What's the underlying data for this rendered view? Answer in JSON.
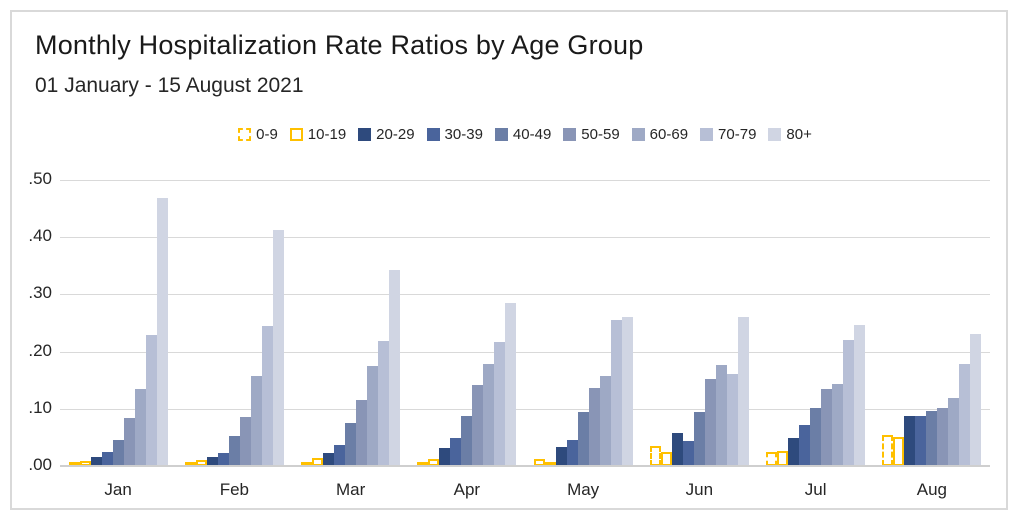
{
  "header": {
    "title": "Monthly Hospitalization Rate Ratios by Age Group",
    "subtitle": "01 January - 15 August 2021"
  },
  "colors": {
    "accent_orange": "#FFC000",
    "gridline": "#D9D9D9",
    "axis_line": "#CFCFCF",
    "frame_border": "#D9D9D9",
    "text": "#262626"
  },
  "chart_data": {
    "type": "bar",
    "title": "Monthly Hospitalization Rate Ratios by Age Group",
    "subtitle": "01 January - 15 August 2021",
    "grid": true,
    "legend_position": "top",
    "ylim": [
      0,
      0.5
    ],
    "ytick_step": 0.1,
    "ytick_labels": [
      ".00",
      ".10",
      ".20",
      ".30",
      ".40",
      ".50"
    ],
    "categories": [
      "Jan",
      "Feb",
      "Mar",
      "Apr",
      "May",
      "Jun",
      "Jul",
      "Aug"
    ],
    "series": [
      {
        "name": "0-9",
        "style": "dashed-outline",
        "color": "#FFC000",
        "values": [
          0.007,
          0.007,
          0.007,
          0.006,
          0.013,
          0.035,
          0.024,
          0.055
        ]
      },
      {
        "name": "10-19",
        "style": "solid-outline",
        "color": "#FFC000",
        "values": [
          0.008,
          0.011,
          0.014,
          0.012,
          0.007,
          0.024,
          0.027,
          0.05
        ]
      },
      {
        "name": "20-29",
        "style": "fill",
        "color": "#2E4A7D",
        "values": [
          0.015,
          0.015,
          0.023,
          0.031,
          0.034,
          0.058,
          0.049,
          0.087
        ]
      },
      {
        "name": "30-39",
        "style": "fill",
        "color": "#4A649C",
        "values": [
          0.024,
          0.023,
          0.036,
          0.049,
          0.046,
          0.044,
          0.071,
          0.087
        ]
      },
      {
        "name": "40-49",
        "style": "fill",
        "color": "#6B7EA6",
        "values": [
          0.046,
          0.053,
          0.075,
          0.087,
          0.094,
          0.094,
          0.101,
          0.097
        ]
      },
      {
        "name": "50-59",
        "style": "fill",
        "color": "#8995B6",
        "values": [
          0.084,
          0.086,
          0.116,
          0.142,
          0.137,
          0.152,
          0.134,
          0.101
        ]
      },
      {
        "name": "60-69",
        "style": "fill",
        "color": "#9EA9C5",
        "values": [
          0.134,
          0.157,
          0.175,
          0.178,
          0.157,
          0.177,
          0.144,
          0.119
        ]
      },
      {
        "name": "70-79",
        "style": "fill",
        "color": "#B7BFD6",
        "values": [
          0.229,
          0.244,
          0.219,
          0.216,
          0.256,
          0.161,
          0.221,
          0.179
        ]
      },
      {
        "name": "80+",
        "style": "fill",
        "color": "#D0D5E3",
        "values": [
          0.468,
          0.413,
          0.342,
          0.285,
          0.26,
          0.26,
          0.246,
          0.231
        ]
      }
    ]
  }
}
